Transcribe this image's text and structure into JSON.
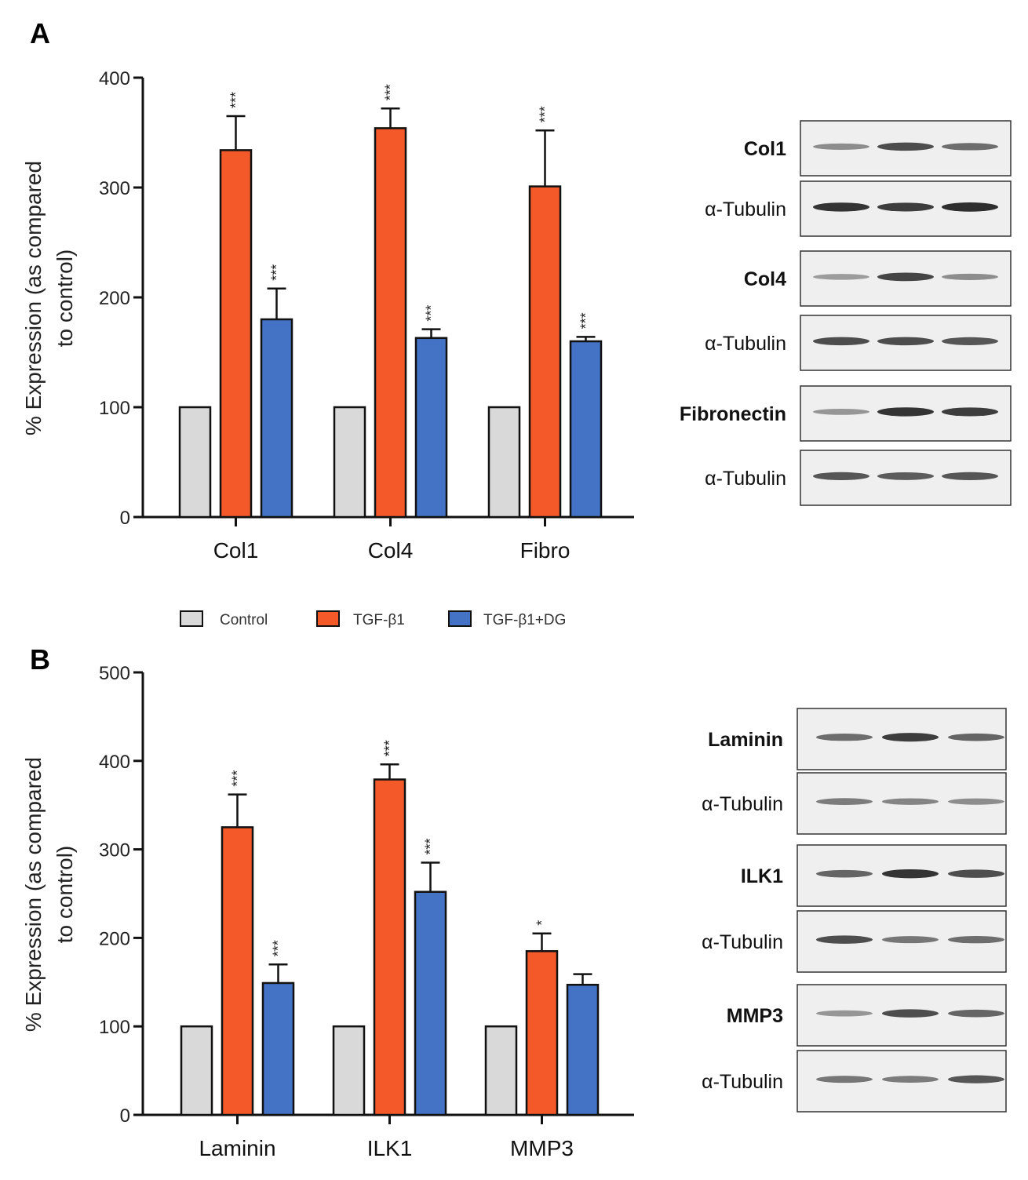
{
  "panels": [
    {
      "letter": "A"
    },
    {
      "letter": "B"
    }
  ],
  "legend": [
    {
      "label": "Control",
      "color": "#d9d9d9"
    },
    {
      "label": "TGF-β1",
      "color": "#f4592a"
    },
    {
      "label": "TGF-β1+DG",
      "color": "#4472c4"
    }
  ],
  "chart_data": [
    {
      "type": "bar",
      "panel": "A",
      "ylabel_line1": "% Expression (as compared",
      "ylabel_line2": "to control)",
      "ylim": [
        0,
        400
      ],
      "yticks": [
        0,
        100,
        200,
        300,
        400
      ],
      "categories": [
        "Col1",
        "Col4",
        "Fibro"
      ],
      "series": [
        {
          "name": "Control",
          "color": "#d9d9d9",
          "values": [
            100,
            100,
            100
          ],
          "errors": [
            0,
            0,
            0
          ],
          "sig": [
            "",
            "",
            ""
          ]
        },
        {
          "name": "TGF-β1",
          "color": "#f4592a",
          "values": [
            334,
            354,
            301
          ],
          "errors": [
            31,
            18,
            51
          ],
          "sig": [
            "***",
            "***",
            "***"
          ]
        },
        {
          "name": "TGF-β1+DG",
          "color": "#4472c4",
          "values": [
            180,
            163,
            160
          ],
          "errors": [
            28,
            8,
            4
          ],
          "sig": [
            "***",
            "***",
            "***"
          ]
        }
      ]
    },
    {
      "type": "bar",
      "panel": "B",
      "ylabel_line1": "% Expression (as compared",
      "ylabel_line2": "to control)",
      "ylim": [
        0,
        500
      ],
      "yticks": [
        0,
        100,
        200,
        300,
        400,
        500
      ],
      "categories": [
        "Laminin",
        "ILK1",
        "MMP3"
      ],
      "series": [
        {
          "name": "Control",
          "color": "#d9d9d9",
          "values": [
            100,
            100,
            100
          ],
          "errors": [
            0,
            0,
            0
          ],
          "sig": [
            "",
            "",
            ""
          ]
        },
        {
          "name": "TGF-β1",
          "color": "#f4592a",
          "values": [
            325,
            379,
            185
          ],
          "errors": [
            37,
            17,
            20
          ],
          "sig": [
            "***",
            "***",
            "*"
          ]
        },
        {
          "name": "TGF-β1+DG",
          "color": "#4472c4",
          "values": [
            149,
            252,
            147
          ],
          "errors": [
            21,
            33,
            12
          ],
          "sig": [
            "***",
            "***",
            ""
          ]
        }
      ]
    }
  ],
  "blots": {
    "A": [
      {
        "label": "Col1",
        "bold": true,
        "bands": [
          0.35,
          0.75,
          0.55
        ]
      },
      {
        "label": "α-Tubulin",
        "bold": false,
        "bands": [
          0.9,
          0.85,
          0.95
        ]
      },
      {
        "label": "Col4",
        "bold": true,
        "bands": [
          0.25,
          0.8,
          0.35
        ]
      },
      {
        "label": "α-Tubulin",
        "bold": false,
        "bands": [
          0.75,
          0.75,
          0.7
        ]
      },
      {
        "label": "Fibronectin",
        "bold": true,
        "bands": [
          0.3,
          0.9,
          0.85
        ]
      },
      {
        "label": "α-Tubulin",
        "bold": false,
        "bands": [
          0.7,
          0.65,
          0.7
        ]
      }
    ],
    "B": [
      {
        "label": "Laminin",
        "bold": true,
        "bands": [
          0.55,
          0.85,
          0.6
        ]
      },
      {
        "label": "α-Tubulin",
        "bold": false,
        "bands": [
          0.45,
          0.4,
          0.35
        ]
      },
      {
        "label": "ILK1",
        "bold": true,
        "bands": [
          0.6,
          0.9,
          0.75
        ]
      },
      {
        "label": "α-Tubulin",
        "bold": false,
        "bands": [
          0.75,
          0.5,
          0.55
        ]
      },
      {
        "label": "MMP3",
        "bold": true,
        "bands": [
          0.3,
          0.75,
          0.6
        ]
      },
      {
        "label": "α-Tubulin",
        "bold": false,
        "bands": [
          0.5,
          0.45,
          0.7
        ]
      }
    ]
  }
}
